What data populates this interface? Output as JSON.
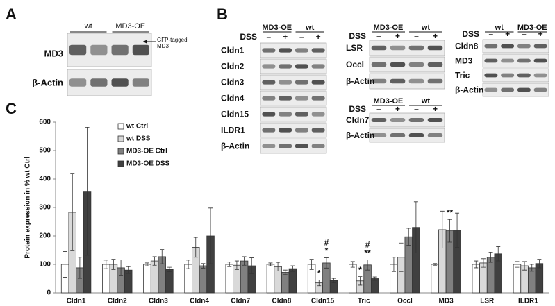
{
  "panels": {
    "a": "A",
    "b": "B",
    "c": "C"
  },
  "blot_a": {
    "groups": [
      "wt",
      "MD3-OE"
    ],
    "rows": [
      "MD3",
      "β-Actin"
    ],
    "note": [
      "GFP-tagged",
      "MD3"
    ]
  },
  "blots_b": [
    {
      "groups": [
        "MD3-OE",
        "wt"
      ],
      "treatment": "DSS",
      "lanes": [
        "–",
        "+",
        "–",
        "+"
      ],
      "rows": [
        "Cldn1",
        "Cldn2",
        "Cldn3",
        "Cldn4",
        "Cldn15",
        "ILDR1",
        "β-Actin"
      ]
    },
    {
      "groups": [
        "MD3-OE",
        "wt"
      ],
      "treatment": "DSS",
      "lanes": [
        "–",
        "+",
        "–",
        "+"
      ],
      "rows": [
        "LSR",
        "Occl",
        "β-Actin"
      ]
    },
    {
      "groups": [
        "MD3-OE",
        "wt"
      ],
      "treatment": "DSS",
      "lanes": [
        "–",
        "+",
        "–",
        "+"
      ],
      "rows": [
        "Cldn7",
        "β-Actin"
      ]
    },
    {
      "groups": [
        "wt",
        "MD3-OE"
      ],
      "treatment": "DSS",
      "lanes": [
        "–",
        "+",
        "–",
        "+"
      ],
      "rows": [
        "Cldn8",
        "MD3",
        "Tric",
        "β-Actin"
      ]
    }
  ],
  "chart_data": {
    "type": "bar",
    "ylabel": "Protein expression in % wt Ctrl",
    "categories": [
      "Cldn1",
      "Cldn2",
      "Cldn3",
      "Cldn4",
      "Cldn7",
      "Cldn8",
      "Cldn15",
      "Tric",
      "Occl",
      "MD3",
      "LSR",
      "ILDR1"
    ],
    "series": [
      {
        "name": "wt Ctrl",
        "color": "#ffffff",
        "values": [
          100,
          100,
          100,
          100,
          100,
          100,
          100,
          100,
          100,
          100,
          100,
          100
        ],
        "errors": [
          45,
          15,
          5,
          15,
          8,
          5,
          18,
          10,
          25,
          3,
          12,
          10
        ]
      },
      {
        "name": "wt DSS",
        "color": "#d9d9d9",
        "values": [
          283,
          100,
          112,
          160,
          97,
          92,
          35,
          42,
          125,
          222,
          105,
          95
        ],
        "errors": [
          135,
          18,
          15,
          35,
          15,
          15,
          10,
          15,
          50,
          65,
          15,
          15
        ]
      },
      {
        "name": "MD3-OE Ctrl",
        "color": "#808080",
        "values": [
          88,
          88,
          127,
          95,
          112,
          72,
          105,
          98,
          197,
          218,
          125,
          88
        ],
        "errors": [
          37,
          28,
          25,
          8,
          15,
          8,
          18,
          18,
          30,
          40,
          18,
          12
        ]
      },
      {
        "name": "MD3-OE DSS",
        "color": "#404040",
        "values": [
          357,
          80,
          82,
          200,
          95,
          85,
          43,
          50,
          230,
          220,
          137,
          103
        ],
        "errors": [
          225,
          12,
          8,
          98,
          28,
          10,
          8,
          6,
          90,
          60,
          25,
          15
        ]
      }
    ],
    "annotations": [
      {
        "text": "*",
        "category": "Cldn15",
        "series": "wt DSS"
      },
      {
        "text": "#",
        "category": "Cldn15",
        "series": "MD3-OE Ctrl"
      },
      {
        "text": "*",
        "category": "Cldn15",
        "series": "MD3-OE Ctrl"
      },
      {
        "text": "*",
        "category": "Tric",
        "series": "wt DSS"
      },
      {
        "text": "#",
        "category": "Tric",
        "series": "MD3-OE Ctrl"
      },
      {
        "text": "**",
        "category": "Tric",
        "series": "MD3-OE Ctrl"
      },
      {
        "text": "**",
        "category": "MD3",
        "series": "MD3-OE Ctrl"
      }
    ],
    "ylim": [
      0,
      600
    ],
    "yticks": [
      0,
      100,
      200,
      300,
      400,
      500,
      600
    ],
    "grid": false,
    "legend": "upper-left"
  }
}
